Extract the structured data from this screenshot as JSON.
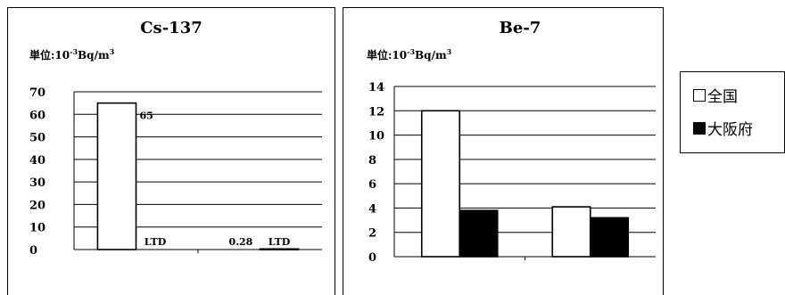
{
  "legend": {
    "items": [
      {
        "label": "全国",
        "color": "#ffffff"
      },
      {
        "label": "大阪府",
        "color": "#000000"
      }
    ]
  },
  "chart_data": [
    {
      "type": "bar",
      "title": "Cs-137",
      "unit": {
        "prefix": "単位:10",
        "exponent": "-3",
        "middle": "Bq/m",
        "power": "3"
      },
      "ylim": [
        0,
        70
      ],
      "yticks": [
        "0",
        "10",
        "20",
        "30",
        "40",
        "50",
        "60",
        "70"
      ],
      "grid": true,
      "series": [
        {
          "name": "全国",
          "color": "#ffffff",
          "values": [
            65,
            null
          ]
        },
        {
          "name": "大阪府",
          "color": "#000000",
          "values": [
            null,
            0.28
          ]
        }
      ],
      "data_labels": [
        {
          "text": "65"
        },
        {
          "text": "LTD"
        },
        {
          "text": "0.28"
        },
        {
          "text": "LTD"
        }
      ]
    },
    {
      "type": "bar",
      "title": "Be-7",
      "unit": {
        "prefix": "単位:10",
        "exponent": "-3",
        "middle": "Bq/m",
        "power": "3"
      },
      "ylim": [
        0,
        14
      ],
      "yticks": [
        "0",
        "2",
        "4",
        "6",
        "8",
        "10",
        "12",
        "14"
      ],
      "grid": true,
      "series": [
        {
          "name": "全国",
          "color": "#ffffff",
          "values": [
            12,
            4.1
          ]
        },
        {
          "name": "大阪府",
          "color": "#000000",
          "values": [
            3.8,
            3.2
          ]
        }
      ]
    }
  ]
}
